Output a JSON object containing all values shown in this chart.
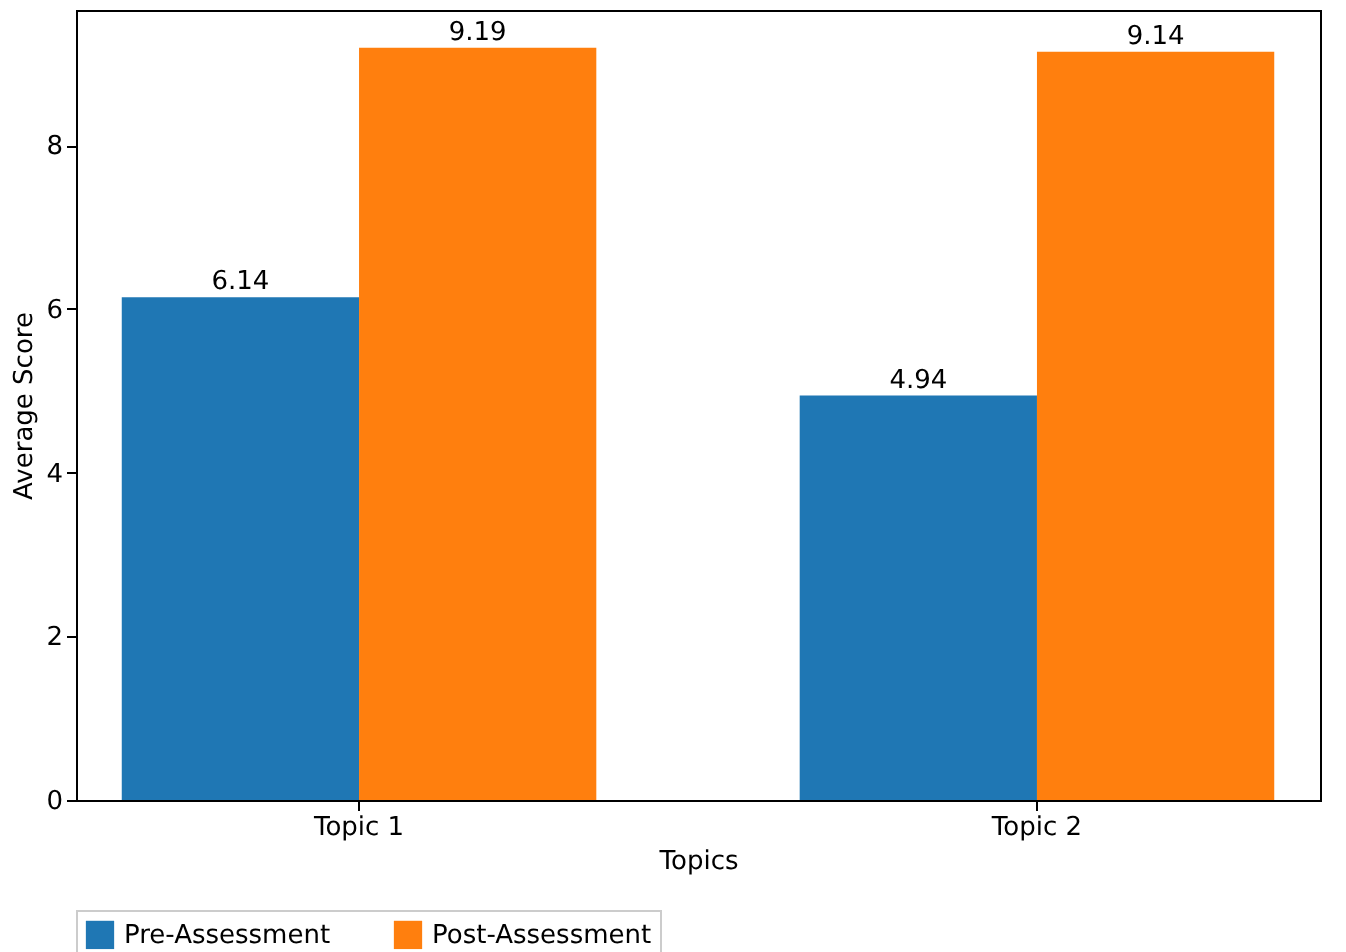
{
  "chart_data": {
    "type": "bar",
    "xlabel": "Topics",
    "ylabel": "Average Score",
    "categories": [
      "Topic 1",
      "Topic 2"
    ],
    "series": [
      {
        "name": "Pre-Assessment",
        "color": "#1f77b4",
        "values": [
          6.14,
          4.94
        ]
      },
      {
        "name": "Post-Assessment",
        "color": "#ff7f0e",
        "values": [
          9.19,
          9.14
        ]
      }
    ],
    "ylim": [
      0,
      9.65
    ],
    "yticks": [
      0,
      2,
      4,
      6,
      8
    ],
    "data_labels": true,
    "grid": false,
    "legend": "bottom"
  }
}
